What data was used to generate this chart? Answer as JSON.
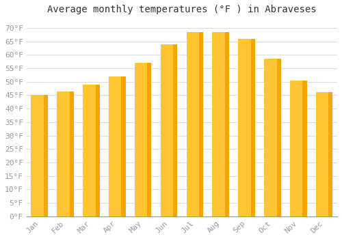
{
  "title": "Average monthly temperatures (°F ) in Abraveses",
  "months": [
    "Jan",
    "Feb",
    "Mar",
    "Apr",
    "May",
    "Jun",
    "Jul",
    "Aug",
    "Sep",
    "Oct",
    "Nov",
    "Dec"
  ],
  "values": [
    45,
    46.5,
    49,
    52,
    57,
    64,
    68.5,
    68.5,
    66,
    58.5,
    50.5,
    46
  ],
  "bar_color_left": "#FFC533",
  "bar_color_right": "#F5A500",
  "ylim": [
    0,
    73
  ],
  "yticks": [
    0,
    5,
    10,
    15,
    20,
    25,
    30,
    35,
    40,
    45,
    50,
    55,
    60,
    65,
    70
  ],
  "background_color": "#FFFFFF",
  "grid_color": "#DDDDDD",
  "title_fontsize": 10,
  "tick_fontsize": 8,
  "tick_color": "#999999"
}
